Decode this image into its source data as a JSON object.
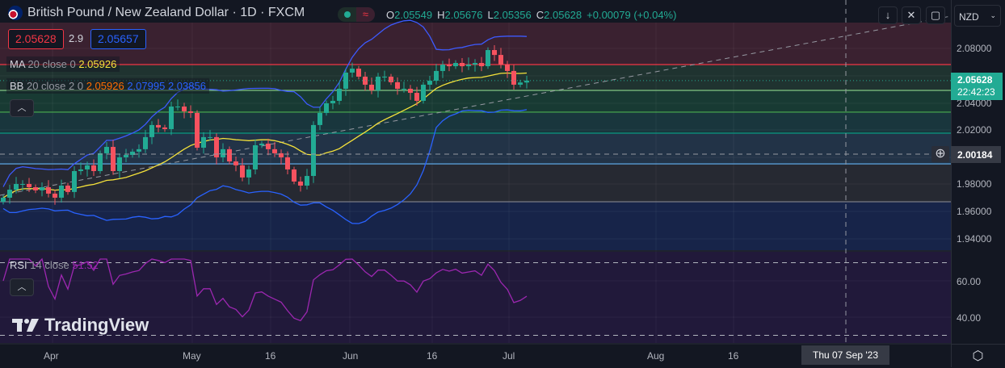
{
  "header": {
    "title": "British Pound / New Zealand Dollar · 1D · FXCM",
    "ohlc": {
      "o_label": "O",
      "o": "2.05549",
      "h_label": "H",
      "h": "2.05676",
      "l_label": "L",
      "l": "2.05356",
      "c_label": "C",
      "c": "2.05628",
      "change": "+0.00079 (+0.04%)"
    }
  },
  "quote": {
    "sell": "2.05628",
    "spread": "2.9",
    "buy": "2.05657"
  },
  "indicators": {
    "ma": {
      "name": "MA",
      "params": "20 close 0",
      "value": "2.05926"
    },
    "bb": {
      "name": "BB",
      "params": "20 close 2 0",
      "basis": "2.05926",
      "upper": "2.07995",
      "lower": "2.03856"
    },
    "rsi": {
      "name": "RSI",
      "params": "14 close",
      "value": "51.52"
    }
  },
  "toolbar": {
    "currency": "NZD"
  },
  "price_axis": {
    "ticks": [
      "2.08000",
      "2.04000",
      "2.02000",
      "1.98000",
      "1.96000",
      "1.94000"
    ],
    "tick_values": [
      2.08,
      2.04,
      2.02,
      1.98,
      1.96,
      1.94
    ],
    "last_price": "2.05628",
    "countdown": "22:42:23",
    "crosshair_price": "2.00184"
  },
  "rsi_axis": {
    "ticks": [
      "60.00",
      "40.00"
    ]
  },
  "time_axis": {
    "ticks": [
      "Apr",
      "May",
      "16",
      "Jun",
      "16",
      "Jul",
      "Aug",
      "16"
    ],
    "crosshair_label": "Thu 07 Sep '23"
  },
  "watermark": "TradingView",
  "colors": {
    "up": "#22ab94",
    "down": "#f7525f",
    "ma": "#f5e23a",
    "bb": "#2962ff",
    "rsi": "#9c27b0",
    "last_price": "#22ab94"
  },
  "fib_levels": [
    2.0681,
    2.0491,
    2.0331,
    2.0176,
    1.995,
    1.9671
  ],
  "closes": [
    1.9701,
    1.976,
    1.9802,
    1.9802,
    1.9778,
    1.9755,
    1.9778,
    1.9731,
    1.9701,
    1.979,
    1.9743,
    1.9897,
    1.9909,
    1.9939,
    1.9897,
    2.0028,
    2.0075,
    1.9897,
    1.9998,
    2.0016,
    2.004,
    2.0058,
    2.0147,
    2.0236,
    2.0218,
    2.0206,
    2.0372,
    2.0372,
    2.0337,
    2.0325,
    2.0069,
    2.0147,
    2.0147,
    1.9998,
    2.0058,
    1.9968,
    1.9939,
    1.985,
    1.9909,
    2.0087,
    2.0099,
    2.0058,
    2.0028,
    1.9998,
    1.9909,
    1.982,
    1.979,
    1.9861,
    2.0236,
    2.0325,
    2.0396,
    2.0414,
    2.0503,
    2.0622,
    2.0651,
    2.0592,
    2.0533,
    2.0491,
    2.0592,
    2.0592,
    2.0551,
    2.0503,
    2.0503,
    2.0473,
    2.0414,
    2.0533,
    2.0562,
    2.0634,
    2.0681,
    2.0669,
    2.0693,
    2.0669,
    2.0681,
    2.0693,
    2.0669,
    2.0788,
    2.0752,
    2.0681,
    2.0634,
    2.0533,
    2.0549,
    2.05628
  ]
}
